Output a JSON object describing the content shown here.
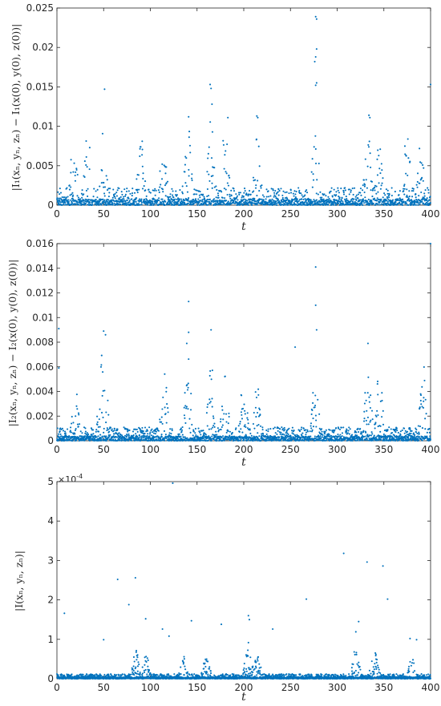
{
  "chart_data": [
    {
      "type": "scatter",
      "title": "",
      "xlabel": "t",
      "ylabel": "|I₁(xₙ, yₙ, zₙ) − I₁(x(0), y(0), z(0))|",
      "xlim": [
        0,
        400
      ],
      "ylim": [
        0,
        0.025
      ],
      "xticks": [
        "0",
        "50",
        "100",
        "150",
        "200",
        "250",
        "300",
        "350",
        "400"
      ],
      "yticks": [
        "0",
        "0.005",
        "0.01",
        "0.015",
        "0.02",
        "0.025"
      ],
      "marker_color": "#0072bd",
      "grid": false,
      "n_points": 2000,
      "seed": 11,
      "typical": 0.0022,
      "bursts": [
        {
          "t": 50,
          "peak": 0.0105
        },
        {
          "t": 18,
          "peak": 0.009
        },
        {
          "t": 33,
          "peak": 0.0098
        },
        {
          "t": 90,
          "peak": 0.0102
        },
        {
          "t": 114,
          "peak": 0.0088
        },
        {
          "t": 140,
          "peak": 0.011
        },
        {
          "t": 165,
          "peak": 0.0115
        },
        {
          "t": 180,
          "peak": 0.011
        },
        {
          "t": 214,
          "peak": 0.0113
        },
        {
          "t": 277,
          "peak": 0.011
        },
        {
          "t": 333,
          "peak": 0.0115
        },
        {
          "t": 345,
          "peak": 0.0085
        },
        {
          "t": 375,
          "peak": 0.0102
        },
        {
          "t": 390,
          "peak": 0.0095
        }
      ],
      "outliers": [
        {
          "t": 277,
          "y": 0.0239
        },
        {
          "t": 278,
          "y": 0.0236
        },
        {
          "t": 278,
          "y": 0.0198
        },
        {
          "t": 277,
          "y": 0.0188
        },
        {
          "t": 276,
          "y": 0.0182
        },
        {
          "t": 278,
          "y": 0.0155
        },
        {
          "t": 277,
          "y": 0.0152
        },
        {
          "t": 164,
          "y": 0.0153
        },
        {
          "t": 165,
          "y": 0.0148
        },
        {
          "t": 51,
          "y": 0.0147
        },
        {
          "t": 400,
          "y": 0.0153
        },
        {
          "t": 166,
          "y": 0.0128
        },
        {
          "t": 214,
          "y": 0.0113
        },
        {
          "t": 215,
          "y": 0.0111
        },
        {
          "t": 334,
          "y": 0.0114
        },
        {
          "t": 335,
          "y": 0.0111
        },
        {
          "t": 183,
          "y": 0.0111
        },
        {
          "t": 141,
          "y": 0.0112
        }
      ]
    },
    {
      "type": "scatter",
      "title": "",
      "xlabel": "t",
      "ylabel": "|I₂(xₙ, yₙ, zₙ) − I₂(x(0), y(0), z(0))|",
      "xlim": [
        0,
        400
      ],
      "ylim": [
        0,
        0.016
      ],
      "xticks": [
        "0",
        "50",
        "100",
        "150",
        "200",
        "250",
        "300",
        "350",
        "400"
      ],
      "yticks": [
        "0",
        "0.002",
        "0.004",
        "0.006",
        "0.008",
        "0.01",
        "0.012",
        "0.014",
        "0.016"
      ],
      "marker_color": "#0072bd",
      "grid": false,
      "n_points": 2200,
      "seed": 23,
      "typical": 0.0011,
      "bursts": [
        {
          "t": 50,
          "peak": 0.0088
        },
        {
          "t": 48,
          "peak": 0.0075
        },
        {
          "t": 20,
          "peak": 0.0045
        },
        {
          "t": 115,
          "peak": 0.0057
        },
        {
          "t": 140,
          "peak": 0.0074
        },
        {
          "t": 165,
          "peak": 0.0064
        },
        {
          "t": 180,
          "peak": 0.0055
        },
        {
          "t": 200,
          "peak": 0.0055
        },
        {
          "t": 214,
          "peak": 0.0049
        },
        {
          "t": 277,
          "peak": 0.0065
        },
        {
          "t": 333,
          "peak": 0.0067
        },
        {
          "t": 345,
          "peak": 0.006
        },
        {
          "t": 392,
          "peak": 0.0063
        }
      ],
      "outliers": [
        {
          "t": 400,
          "y": 0.016
        },
        {
          "t": 277,
          "y": 0.0141
        },
        {
          "t": 141,
          "y": 0.0113
        },
        {
          "t": 277,
          "y": 0.011
        },
        {
          "t": 2,
          "y": 0.0091
        },
        {
          "t": 278,
          "y": 0.009
        },
        {
          "t": 141,
          "y": 0.0088
        },
        {
          "t": 165,
          "y": 0.009
        },
        {
          "t": 50,
          "y": 0.0089
        },
        {
          "t": 52,
          "y": 0.0086
        },
        {
          "t": 333,
          "y": 0.0079
        },
        {
          "t": 255,
          "y": 0.0076
        },
        {
          "t": 139,
          "y": 0.0079
        },
        {
          "t": 2,
          "y": 0.0059
        }
      ]
    },
    {
      "type": "scatter",
      "title": "",
      "xlabel": "t",
      "ylabel": "|I(xₙ, yₙ, zₙ)|",
      "xlim": [
        0,
        400
      ],
      "ylim": [
        0,
        0.0005
      ],
      "xticks": [
        "0",
        "50",
        "100",
        "150",
        "200",
        "250",
        "300",
        "350",
        "400"
      ],
      "yticks": [
        "0",
        "1",
        "2",
        "3",
        "4",
        "5"
      ],
      "y_exponent_label": "×10",
      "y_exponent_power": "-4",
      "marker_color": "#0072bd",
      "grid": false,
      "n_points": 2600,
      "seed": 37,
      "typical": 1.2e-05,
      "bursts": [
        {
          "t": 85,
          "peak": 8e-05
        },
        {
          "t": 95,
          "peak": 7e-05
        },
        {
          "t": 135,
          "peak": 6e-05
        },
        {
          "t": 160,
          "peak": 6e-05
        },
        {
          "t": 205,
          "peak": 0.0001
        },
        {
          "t": 215,
          "peak": 7e-05
        },
        {
          "t": 320,
          "peak": 8e-05
        },
        {
          "t": 340,
          "peak": 9e-05
        },
        {
          "t": 380,
          "peak": 6e-05
        }
      ],
      "outliers": [
        {
          "t": 124,
          "y": 0.000496
        },
        {
          "t": 307,
          "y": 0.000318
        },
        {
          "t": 332,
          "y": 0.000296
        },
        {
          "t": 349,
          "y": 0.000286
        },
        {
          "t": 84,
          "y": 0.000256
        },
        {
          "t": 65,
          "y": 0.000252
        },
        {
          "t": 354,
          "y": 0.000202
        },
        {
          "t": 267,
          "y": 0.000202
        },
        {
          "t": 77,
          "y": 0.000188
        },
        {
          "t": 8,
          "y": 0.000166
        },
        {
          "t": 205,
          "y": 0.00016
        },
        {
          "t": 206,
          "y": 0.00015
        },
        {
          "t": 95,
          "y": 0.000152
        },
        {
          "t": 144,
          "y": 0.000147
        },
        {
          "t": 323,
          "y": 0.000145
        },
        {
          "t": 176,
          "y": 0.000138
        },
        {
          "t": 113,
          "y": 0.000126
        },
        {
          "t": 231,
          "y": 0.000126
        },
        {
          "t": 320,
          "y": 0.000119
        },
        {
          "t": 385,
          "y": 9.9e-05
        },
        {
          "t": 378,
          "y": 0.000102
        },
        {
          "t": 120,
          "y": 0.000108
        },
        {
          "t": 50,
          "y": 9.9e-05
        }
      ]
    }
  ]
}
